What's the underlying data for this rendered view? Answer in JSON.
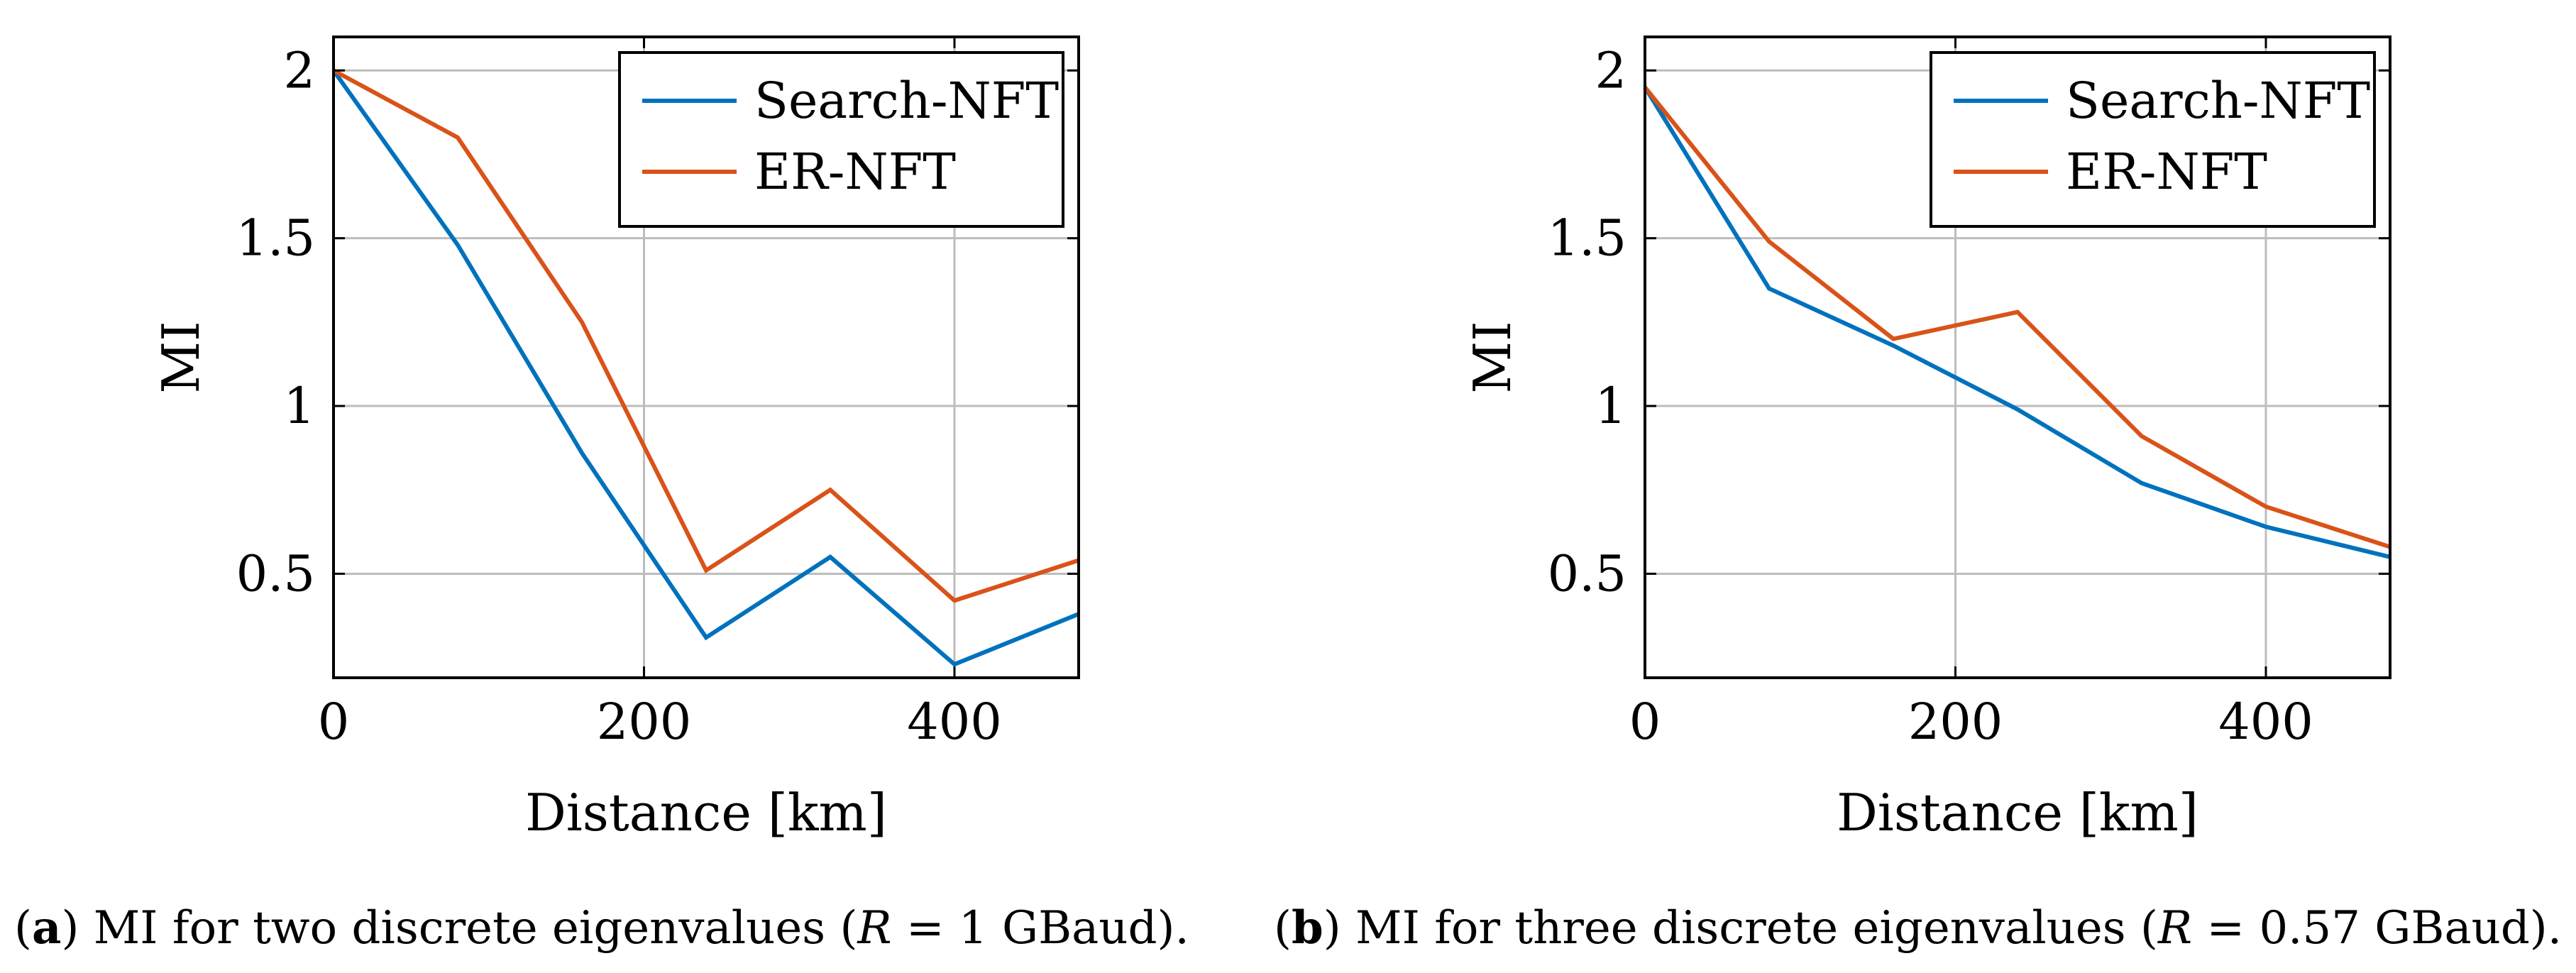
{
  "chart_data": [
    {
      "type": "line",
      "xlabel": "Distance [km]",
      "ylabel": "MI",
      "xlim": [
        0,
        480
      ],
      "ylim": [
        0.19,
        2.1
      ],
      "xticks": [
        0,
        200,
        400
      ],
      "xtick_labels": [
        "0",
        "200",
        "400"
      ],
      "yticks": [
        0.5,
        1,
        1.5,
        2
      ],
      "ytick_labels": [
        "0.5",
        "1",
        "1.5",
        "2"
      ],
      "grid": true,
      "legend_position": "top-right",
      "x": [
        0,
        80,
        160,
        240,
        320,
        400,
        480
      ],
      "series": [
        {
          "name": "Search-NFT",
          "color": "#0072bd",
          "values": [
            2.0,
            1.48,
            0.86,
            0.31,
            0.55,
            0.23,
            0.38
          ]
        },
        {
          "name": "ER-NFT",
          "color": "#d95319",
          "values": [
            2.0,
            1.8,
            1.25,
            0.51,
            0.75,
            0.42,
            0.54
          ]
        }
      ],
      "caption": {
        "label": "a",
        "text": "MI for two discrete eigenvalues (",
        "var": "R",
        "rel": " = 1 GBaud)."
      }
    },
    {
      "type": "line",
      "xlabel": "Distance [km]",
      "ylabel": "MI",
      "xlim": [
        0,
        480
      ],
      "ylim": [
        0.19,
        2.1
      ],
      "xticks": [
        0,
        200,
        400
      ],
      "xtick_labels": [
        "0",
        "200",
        "400"
      ],
      "yticks": [
        0.5,
        1,
        1.5,
        2
      ],
      "ytick_labels": [
        "0.5",
        "1",
        "1.5",
        "2"
      ],
      "grid": true,
      "legend_position": "top-right",
      "x": [
        0,
        80,
        160,
        240,
        320,
        400,
        480
      ],
      "series": [
        {
          "name": "Search-NFT",
          "color": "#0072bd",
          "values": [
            1.95,
            1.35,
            1.18,
            0.99,
            0.77,
            0.64,
            0.55
          ]
        },
        {
          "name": "ER-NFT",
          "color": "#d95319",
          "values": [
            1.95,
            1.49,
            1.2,
            1.28,
            0.91,
            0.7,
            0.58
          ]
        }
      ],
      "caption": {
        "label": "b",
        "text": "MI for three discrete eigenvalues (",
        "var": "R",
        "rel": " = 0.57 GBaud)."
      }
    }
  ]
}
